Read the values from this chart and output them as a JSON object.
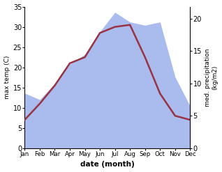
{
  "months": [
    "Jan",
    "Feb",
    "Mar",
    "Apr",
    "May",
    "Jun",
    "Jul",
    "Aug",
    "Sep",
    "Oct",
    "Nov",
    "Dec"
  ],
  "max_temp": [
    7.0,
    11.0,
    15.5,
    21.0,
    22.5,
    28.5,
    30.0,
    30.5,
    22.5,
    13.5,
    8.0,
    7.0
  ],
  "precipitation": [
    8.5,
    7.5,
    10.0,
    13.0,
    14.5,
    18.0,
    21.0,
    19.5,
    19.0,
    19.5,
    11.0,
    6.5
  ],
  "temp_color": "#993344",
  "precip_fill_color": "#aabbee",
  "temp_ylim": [
    0,
    35
  ],
  "precip_ylim": [
    0,
    21.875
  ],
  "temp_yticks": [
    0,
    5,
    10,
    15,
    20,
    25,
    30,
    35
  ],
  "precip_yticks": [
    0,
    5,
    10,
    15,
    20
  ],
  "xlabel": "date (month)",
  "ylabel_left": "max temp (C)",
  "ylabel_right": "med. precipitation\n(kg/m2)",
  "bg_color": "#ffffff"
}
